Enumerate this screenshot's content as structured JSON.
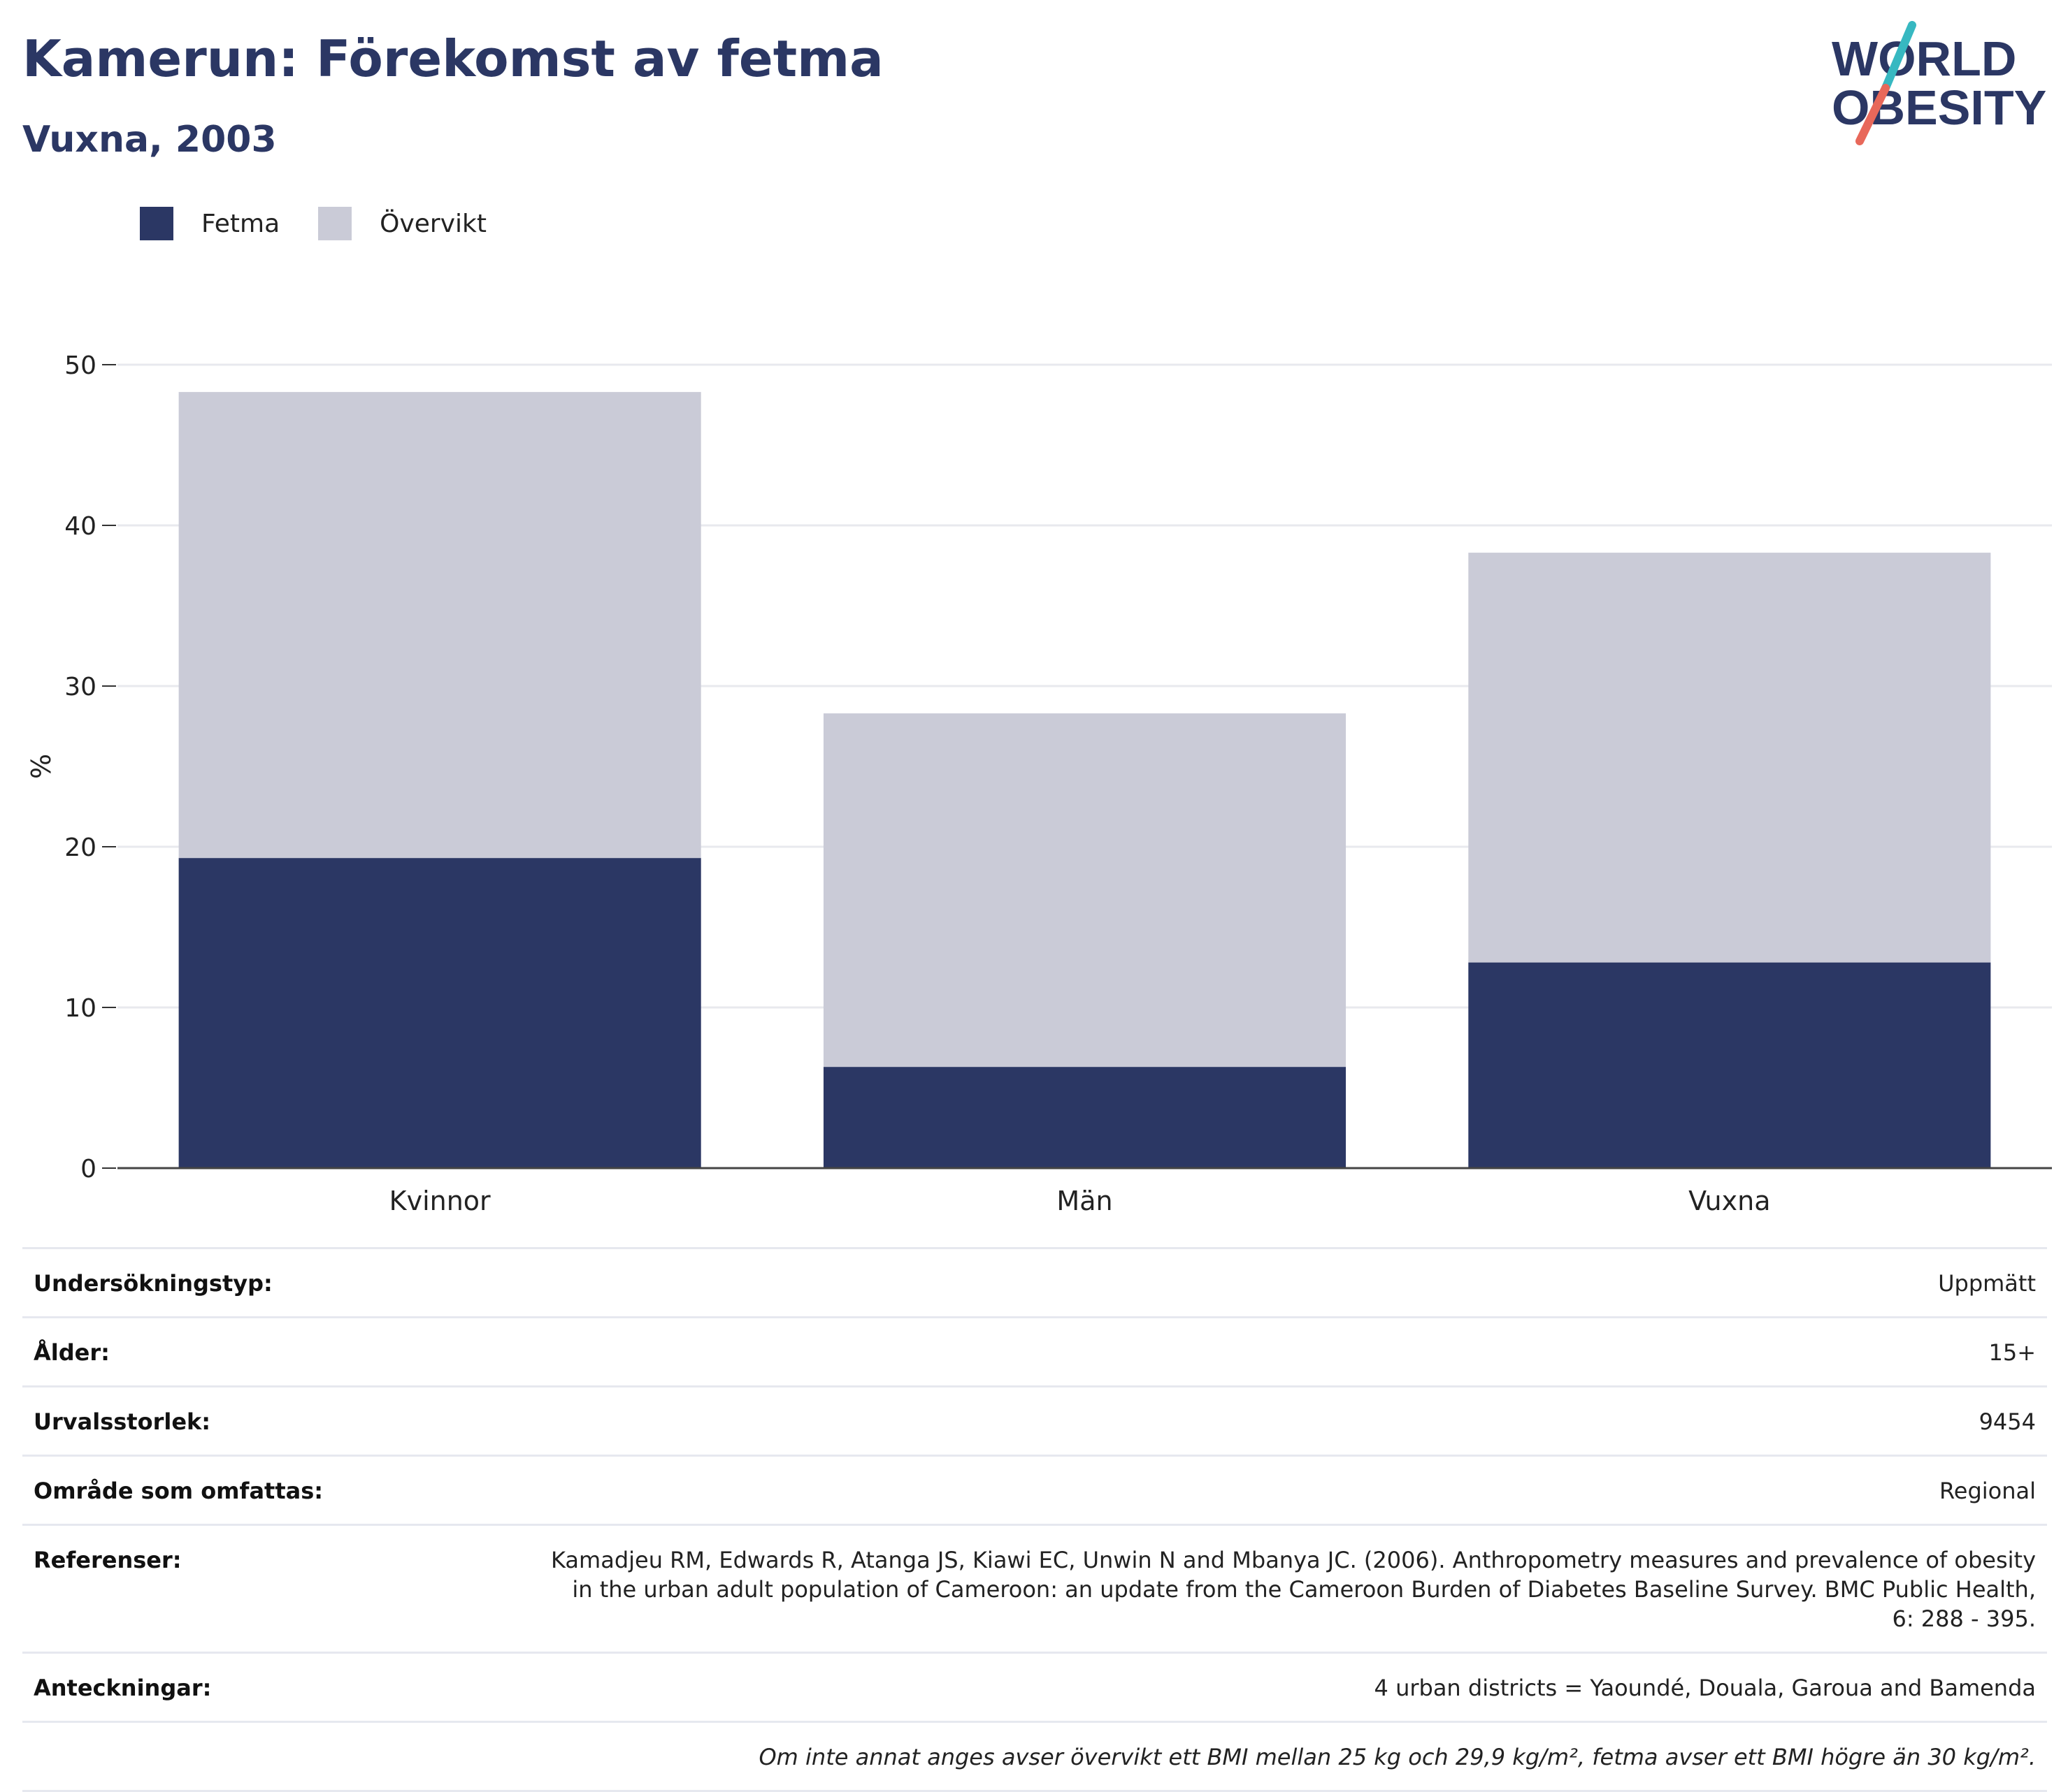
{
  "header": {
    "title": "Kamerun: Förekomst av fetma",
    "subtitle": "Vuxna, 2003"
  },
  "logo": {
    "line1": "WORLD",
    "line2": "OBESITY",
    "colors": {
      "text": "#2b3764",
      "slash_top": "#37b8c1",
      "slash_bottom": "#e8685a"
    }
  },
  "legend": [
    {
      "label": "Fetma",
      "color": "#2b3764"
    },
    {
      "label": "Övervikt",
      "color": "#cacbd7"
    }
  ],
  "chart_data": {
    "type": "bar",
    "stacked": true,
    "categories": [
      "Kvinnor",
      "Män",
      "Vuxna"
    ],
    "series": [
      {
        "name": "Fetma",
        "color": "#2b3764",
        "values": [
          19.3,
          6.3,
          12.8
        ]
      },
      {
        "name": "Övervikt",
        "color": "#cacbd7",
        "values": [
          29.0,
          22.0,
          25.5
        ]
      }
    ],
    "ylabel": "%",
    "ylim": [
      0,
      50
    ],
    "yticks": [
      "0",
      "10",
      "20",
      "30",
      "40",
      "50"
    ],
    "grid": true,
    "legend_position": "top-left"
  },
  "info": {
    "survey_type": {
      "label": "Undersökningstyp:",
      "value": "Uppmätt"
    },
    "age": {
      "label": "Ålder:",
      "value": "15+"
    },
    "sample_size": {
      "label": "Urvalsstorlek:",
      "value": "9454"
    },
    "area": {
      "label": "Område som omfattas:",
      "value": "Regional"
    },
    "references": {
      "label": "Referenser:",
      "value": "Kamadjeu RM, Edwards R, Atanga JS, Kiawi EC, Unwin N and Mbanya JC. (2006). Anthropometry measures and prevalence of obesity in the urban adult population of Cameroon: an update from the Cameroon Burden of Diabetes Baseline Survey. BMC Public Health, 6: 288 - 395."
    },
    "notes": {
      "label": "Anteckningar:",
      "value": "4 urban districts = Yaoundé, Douala, Garoua and Bamenda"
    },
    "footnote": "Om inte annat anges avser övervikt ett BMI mellan 25 kg och 29,9 kg/m², fetma avser ett BMI högre än 30 kg/m²."
  }
}
